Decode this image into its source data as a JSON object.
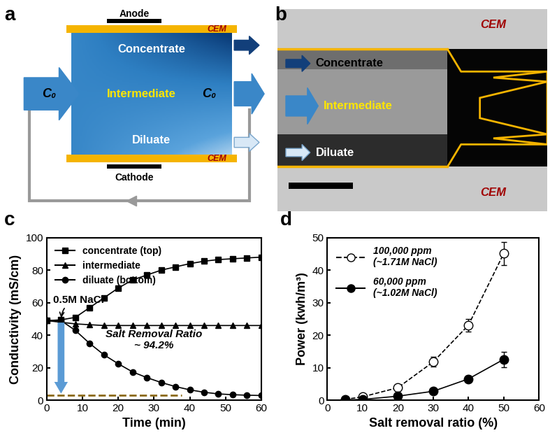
{
  "panel_labels": [
    "a",
    "b",
    "c",
    "d"
  ],
  "diagram_a": {
    "electrodes": [
      "Anode",
      "Cathode"
    ],
    "membranes": [
      "CEM",
      "CEM"
    ],
    "streams": [
      "Concentrate",
      "Intermediate",
      "Diluate"
    ],
    "inlet": "C₀",
    "outlet": "C₀"
  },
  "image_b": {
    "membranes": [
      "CEM",
      "CEM"
    ],
    "streams": [
      "Concentrate",
      "Intermediate",
      "Diluate"
    ]
  },
  "chart_data": [
    {
      "type": "line",
      "x_label": "Time (min)",
      "y_label": "Conductivity (mS/cm)",
      "xlim": [
        0,
        60
      ],
      "xticks": [
        0,
        10,
        20,
        30,
        40,
        50,
        60
      ],
      "ylim": [
        0,
        100
      ],
      "yticks": [
        0,
        20,
        40,
        60,
        80,
        100
      ],
      "legend": "upper left",
      "annotations": [
        "0.5M NaCl",
        "Salt Removal Ratio\n~ 94.2%"
      ],
      "x": [
        0,
        4,
        8,
        12,
        16,
        20,
        24,
        28,
        32,
        36,
        40,
        44,
        48,
        52,
        56,
        60
      ],
      "series": [
        {
          "name": "concentrate (top)",
          "color": "#000000",
          "marker": "square",
          "line_style": "solid",
          "values": [
            49,
            49.5,
            51,
            57,
            63,
            69,
            74,
            77,
            80,
            82,
            84,
            85.5,
            86.5,
            87,
            87.5,
            88
          ]
        },
        {
          "name": "intermediate",
          "color": "#000000",
          "marker": "triangle",
          "line_style": "solid",
          "values": [
            49,
            48,
            47,
            46.5,
            46,
            46,
            46,
            46,
            46,
            46,
            46,
            46,
            46,
            46,
            46,
            46
          ]
        },
        {
          "name": "diluate (bottom)",
          "color": "#000000",
          "marker": "circle",
          "line_style": "solid",
          "values": [
            49,
            49,
            43,
            35,
            28,
            22.5,
            17.5,
            14,
            11,
            8.5,
            6.5,
            5,
            4,
            3.5,
            3.2,
            3
          ]
        }
      ]
    },
    {
      "type": "line",
      "x_label": "Salt removal ratio (%)",
      "y_label": "Power (kwh/m³)",
      "xlim": [
        0,
        60
      ],
      "xticks": [
        0,
        10,
        20,
        30,
        40,
        50,
        60
      ],
      "ylim": [
        0,
        50
      ],
      "yticks": [
        0,
        10,
        20,
        30,
        40,
        50
      ],
      "legend": "upper left",
      "x": [
        5,
        10,
        20,
        30,
        40,
        50
      ],
      "series": [
        {
          "name": "100,000 ppm\n(~1.71M NaCl)",
          "color": "#000000",
          "marker": "circle_open",
          "line_style": "dashed",
          "values": [
            0.3,
            1.1,
            3.9,
            11.8,
            23.1,
            45.1
          ],
          "errors": [
            0.2,
            0.3,
            0.4,
            1.5,
            2,
            3.5
          ]
        },
        {
          "name": "60,000 ppm\n(~1.02M NaCl)",
          "color": "#000000",
          "marker": "circle",
          "line_style": "solid",
          "values": [
            0.1,
            0.3,
            1.3,
            2.8,
            6.6,
            12.6
          ],
          "errors": [
            0.1,
            0.1,
            0.2,
            0.4,
            1,
            2.4
          ]
        }
      ]
    }
  ]
}
